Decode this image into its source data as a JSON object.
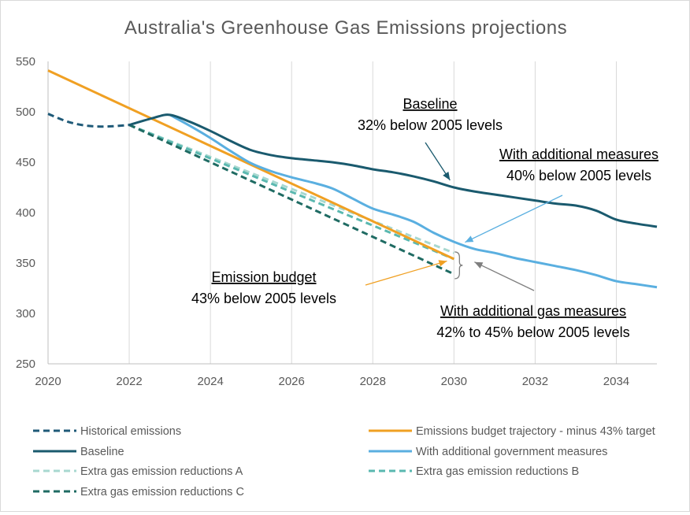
{
  "chart_data": {
    "type": "line",
    "title": "Australia's Greenhouse Gas Emissions projections",
    "xlabel": "",
    "ylabel": "",
    "xlim": [
      2020,
      2035
    ],
    "ylim": [
      250,
      550
    ],
    "x_ticks": [
      2020,
      2022,
      2024,
      2026,
      2028,
      2030,
      2032,
      2034
    ],
    "y_ticks": [
      550,
      500,
      450,
      400,
      350,
      300,
      250
    ],
    "grid": "vertical",
    "legend_position": "bottom",
    "series": [
      {
        "name": "Historical emissions",
        "color": "#1f5a78",
        "dash": "dash",
        "points": [
          [
            2020,
            498
          ],
          [
            2020.5,
            490
          ],
          [
            2021,
            486
          ],
          [
            2021.5,
            485.5
          ],
          [
            2022,
            487
          ]
        ]
      },
      {
        "name": "Emissions budget trajectory - minus 43% target",
        "color": "#f0a023",
        "dash": "solid",
        "points": [
          [
            2020,
            541
          ],
          [
            2030,
            354
          ]
        ]
      },
      {
        "name": "Baseline",
        "color": "#1a5a6e",
        "dash": "solid",
        "points": [
          [
            2022,
            487
          ],
          [
            2022.6,
            494
          ],
          [
            2023,
            497
          ],
          [
            2023.5,
            490
          ],
          [
            2024,
            481
          ],
          [
            2024.5,
            471
          ],
          [
            2025,
            462
          ],
          [
            2025.5,
            457
          ],
          [
            2026,
            454
          ],
          [
            2026.5,
            452
          ],
          [
            2027,
            450
          ],
          [
            2027.5,
            447
          ],
          [
            2028,
            443
          ],
          [
            2028.5,
            440
          ],
          [
            2029,
            436
          ],
          [
            2029.5,
            431
          ],
          [
            2030,
            425
          ],
          [
            2030.5,
            421
          ],
          [
            2031,
            418
          ],
          [
            2031.5,
            415
          ],
          [
            2032,
            412
          ],
          [
            2032.5,
            409
          ],
          [
            2033,
            407
          ],
          [
            2033.5,
            402
          ],
          [
            2034,
            393
          ],
          [
            2034.5,
            389
          ],
          [
            2035,
            386
          ]
        ]
      },
      {
        "name": "With additional government measures",
        "color": "#5aafe0",
        "dash": "solid",
        "points": [
          [
            2023,
            497
          ],
          [
            2023.5,
            486
          ],
          [
            2024,
            474
          ],
          [
            2024.5,
            461
          ],
          [
            2025,
            449
          ],
          [
            2025.5,
            441
          ],
          [
            2026,
            435
          ],
          [
            2026.5,
            430
          ],
          [
            2027,
            424
          ],
          [
            2027.5,
            414
          ],
          [
            2028,
            404
          ],
          [
            2028.5,
            398
          ],
          [
            2029,
            391
          ],
          [
            2029.5,
            380
          ],
          [
            2030,
            371
          ],
          [
            2030.5,
            364
          ],
          [
            2031,
            360
          ],
          [
            2031.5,
            355
          ],
          [
            2032,
            351
          ],
          [
            2032.5,
            347
          ],
          [
            2033,
            343
          ],
          [
            2033.5,
            338
          ],
          [
            2034,
            332
          ],
          [
            2034.5,
            329
          ],
          [
            2035,
            326
          ]
        ]
      },
      {
        "name": "Extra gas emission reductions A",
        "color": "#a8d8d0",
        "dash": "dash",
        "points": [
          [
            2022,
            487
          ],
          [
            2030,
            360
          ]
        ]
      },
      {
        "name": "Extra gas emission reductions B",
        "color": "#5ab8b0",
        "dash": "dash",
        "points": [
          [
            2022,
            487
          ],
          [
            2030,
            354
          ]
        ]
      },
      {
        "name": "Extra gas emission reductions C",
        "color": "#1f6b63",
        "dash": "dash",
        "points": [
          [
            2022,
            487
          ],
          [
            2030,
            339
          ]
        ]
      }
    ],
    "annotations": [
      {
        "id": "baseline",
        "heading": "Baseline",
        "text": "32% below 2005 levels",
        "color": "#1a5a6e"
      },
      {
        "id": "additional",
        "heading": "With additional measures",
        "text": "40% below 2005 levels",
        "color": "#5aafe0"
      },
      {
        "id": "budget",
        "heading": "Emission budget",
        "text": "43% below 2005 levels",
        "color": "#f0a023"
      },
      {
        "id": "gas",
        "heading": "With additional gas measures",
        "text": "42% to 45%  below 2005 levels",
        "color": "#7f7f7f"
      }
    ]
  }
}
